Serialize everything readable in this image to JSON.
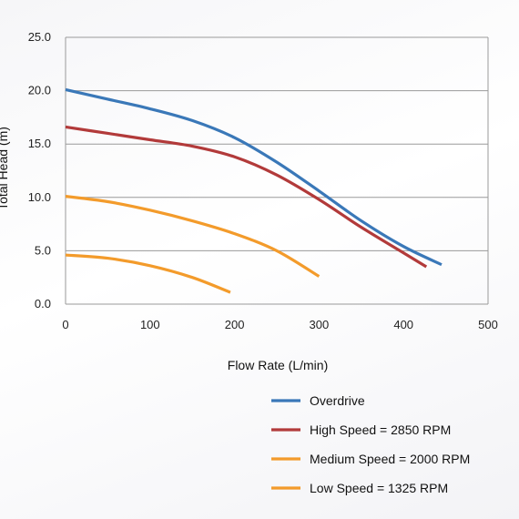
{
  "chart_data": {
    "type": "line",
    "xlabel": "Flow Rate (L/min)",
    "ylabel": "Total Head (m)",
    "xlim": [
      0,
      500
    ],
    "ylim": [
      0,
      25
    ],
    "x_ticks": [
      "0",
      "100",
      "200",
      "300",
      "400",
      "500"
    ],
    "y_ticks": [
      "0.0",
      "5.0",
      "10.0",
      "15.0",
      "20.0",
      "25.0"
    ],
    "grid": "horizontal",
    "legend_position": "bottom-right",
    "series": [
      {
        "name": "Overdrive",
        "color": "#3a78b8",
        "points": [
          [
            0,
            20.1
          ],
          [
            50,
            19.2
          ],
          [
            100,
            18.3
          ],
          [
            150,
            17.2
          ],
          [
            200,
            15.6
          ],
          [
            250,
            13.3
          ],
          [
            300,
            10.6
          ],
          [
            350,
            7.8
          ],
          [
            400,
            5.4
          ],
          [
            445,
            3.7
          ]
        ]
      },
      {
        "name": "High Speed = 2850 RPM",
        "color": "#b23a3a",
        "points": [
          [
            0,
            16.6
          ],
          [
            50,
            16.0
          ],
          [
            100,
            15.4
          ],
          [
            150,
            14.8
          ],
          [
            200,
            13.8
          ],
          [
            250,
            12.1
          ],
          [
            300,
            9.8
          ],
          [
            350,
            7.2
          ],
          [
            400,
            4.8
          ],
          [
            427,
            3.5
          ]
        ]
      },
      {
        "name": "Medium Speed = 2000 RPM",
        "color": "#f39b2b",
        "points": [
          [
            0,
            10.1
          ],
          [
            50,
            9.6
          ],
          [
            100,
            8.8
          ],
          [
            150,
            7.8
          ],
          [
            200,
            6.6
          ],
          [
            250,
            5.0
          ],
          [
            300,
            2.6
          ]
        ]
      },
      {
        "name": "Low Speed = 1325 RPM",
        "color": "#f39b2b",
        "points": [
          [
            0,
            4.6
          ],
          [
            50,
            4.3
          ],
          [
            100,
            3.6
          ],
          [
            150,
            2.5
          ],
          [
            195,
            1.1
          ]
        ]
      }
    ]
  }
}
